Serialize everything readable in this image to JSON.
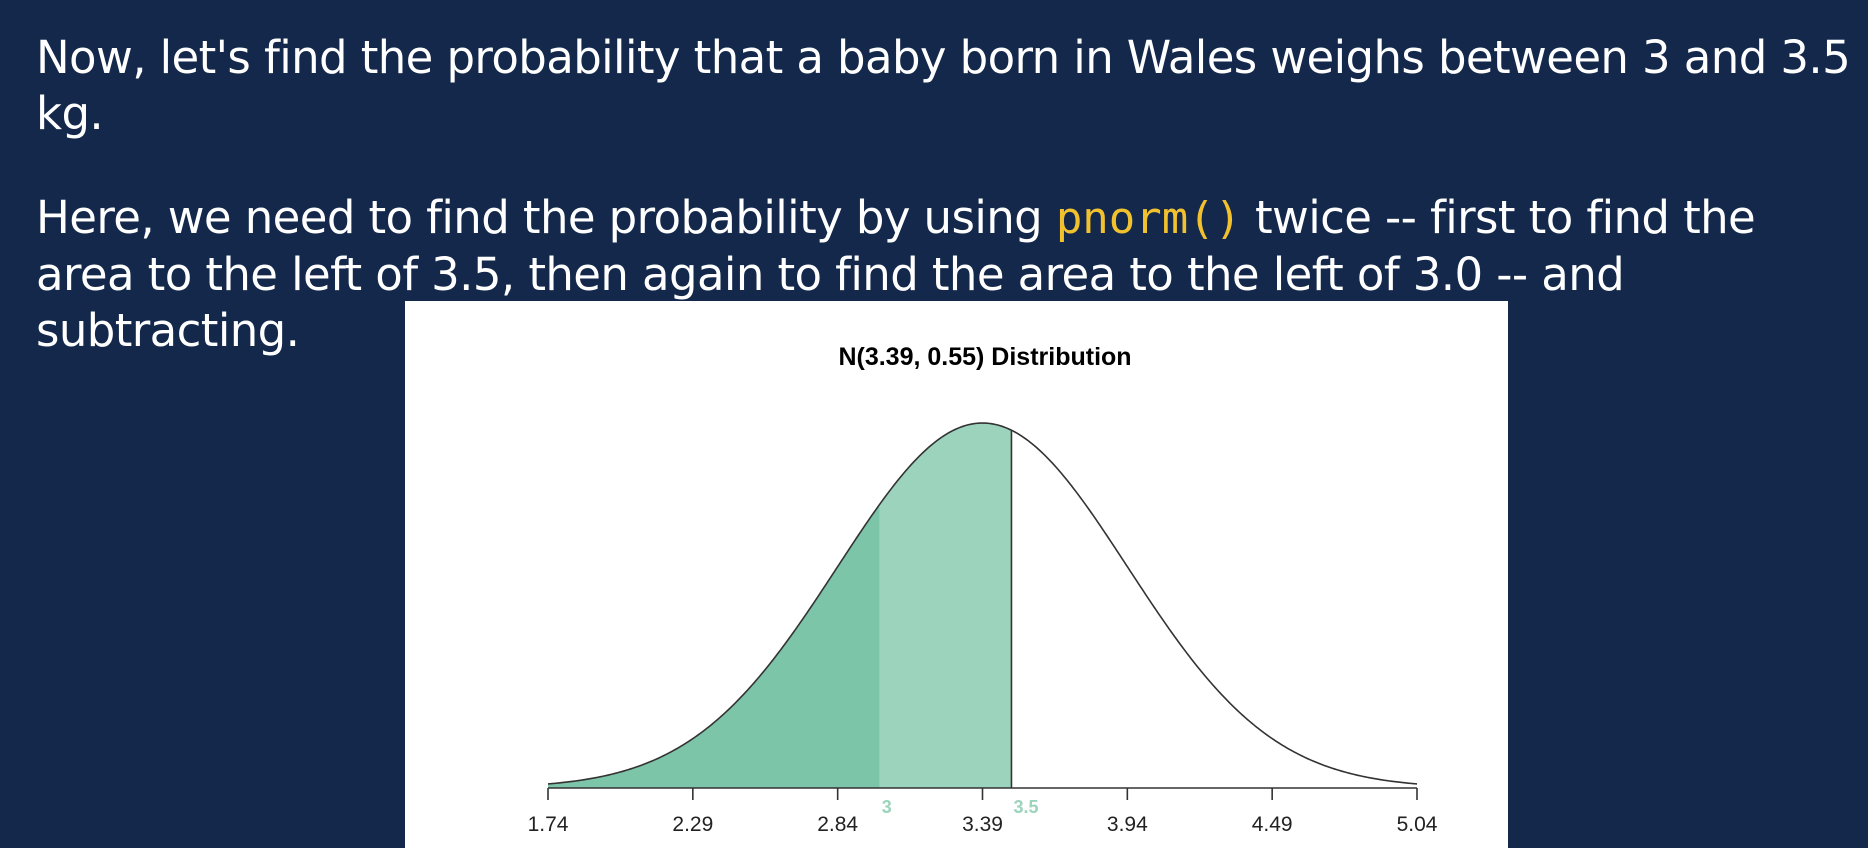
{
  "text": {
    "line1": "Now, let's find the probability that a baby born in Wales weighs between 3 and 3.5 kg.",
    "line2_before": "Here, we need to find the probability by using ",
    "line2_code": "pnorm()",
    "line2_after": " twice -- first to find the area to the left of 3.5, then again to find the area to the left of 3.0 -- and subtracting."
  },
  "chart_data": {
    "type": "area",
    "title": "N(3.39, 0.55) Distribution",
    "distribution": {
      "mean": 3.39,
      "sd": 0.55
    },
    "xlim": [
      1.74,
      5.04
    ],
    "x_ticks": [
      1.74,
      2.29,
      2.84,
      3.39,
      3.94,
      4.49,
      5.04
    ],
    "x_tick_labels": [
      "1.74",
      "2.29",
      "2.84",
      "3.39",
      "3.94",
      "4.49",
      "5.04"
    ],
    "shaded_regions": [
      {
        "from": 1.74,
        "to": 3.0,
        "color": "#7cc5a8"
      },
      {
        "from": 3.0,
        "to": 3.5,
        "color": "#9bd3bc"
      }
    ],
    "markers": [
      {
        "value": 3.0,
        "label": "3"
      },
      {
        "value": 3.5,
        "label": "3.5"
      }
    ],
    "marker_color": "#9bd3bc",
    "curve_color": "#333333",
    "grid": false
  }
}
